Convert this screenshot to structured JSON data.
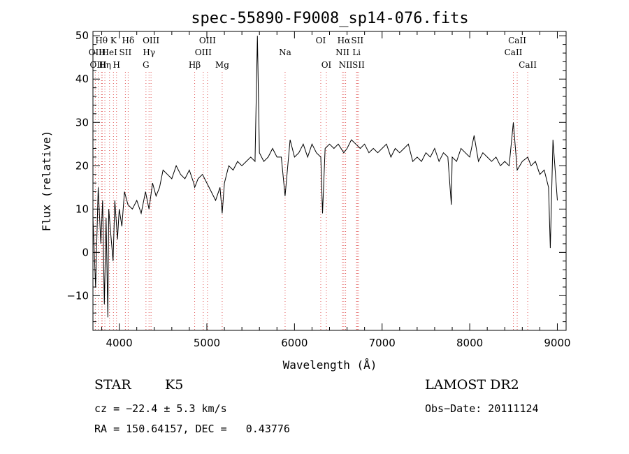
{
  "colors": {
    "spectrum": "#000000",
    "line_marker": "#e05050",
    "axis": "#000000"
  },
  "chart_data": {
    "type": "line",
    "title": "spec-55890-F9008_sp14-076.fits",
    "xlabel": "Wavelength (Å)",
    "ylabel": "Flux (relative)",
    "xlim": [
      3700,
      9100
    ],
    "ylim": [
      -18,
      51
    ],
    "xticks": [
      "4000",
      "5000",
      "6000",
      "7000",
      "8000",
      "9000"
    ],
    "yticks": [
      "−10",
      "0",
      "10",
      "20",
      "30",
      "40",
      "50"
    ],
    "grid": false,
    "legend": "none",
    "series": [
      {
        "x": [
          3700,
          3730,
          3760,
          3790,
          3810,
          3830,
          3850,
          3870,
          3880,
          3900,
          3930,
          3950,
          3980,
          4000,
          4030,
          4060,
          4100,
          4150,
          4200,
          4250,
          4300,
          4340,
          4380,
          4420,
          4460,
          4500,
          4550,
          4600,
          4650,
          4700,
          4750,
          4800,
          4850,
          4861,
          4900,
          4950,
          5000,
          5050,
          5100,
          5150,
          5175,
          5200,
          5250,
          5300,
          5350,
          5400,
          5450,
          5500,
          5550,
          5577,
          5600,
          5650,
          5700,
          5750,
          5800,
          5850,
          5893,
          5950,
          6000,
          6050,
          6100,
          6150,
          6200,
          6250,
          6300,
          6320,
          6350,
          6400,
          6450,
          6500,
          6563,
          6600,
          6650,
          6700,
          6750,
          6800,
          6850,
          6900,
          6950,
          7000,
          7050,
          7100,
          7150,
          7200,
          7250,
          7300,
          7350,
          7400,
          7450,
          7500,
          7550,
          7600,
          7650,
          7700,
          7750,
          7790,
          7800,
          7850,
          7900,
          7950,
          8000,
          8050,
          8100,
          8150,
          8200,
          8250,
          8300,
          8350,
          8400,
          8450,
          8498,
          8542,
          8600,
          8662,
          8700,
          8750,
          8800,
          8850,
          8900,
          8920,
          8950,
          9000
        ],
        "y": [
          8,
          -8,
          15,
          2,
          12,
          -12,
          8,
          -15,
          10,
          5,
          -2,
          12,
          3,
          10,
          6,
          14,
          11,
          10,
          12,
          9,
          14,
          10,
          16,
          13,
          15,
          19,
          18,
          17,
          20,
          18,
          17,
          19,
          16,
          15,
          17,
          18,
          16,
          14,
          12,
          15,
          9,
          16,
          20,
          19,
          21,
          20,
          21,
          22,
          21,
          50,
          23,
          21,
          22,
          24,
          22,
          22,
          13,
          26,
          22,
          23,
          25,
          22,
          25,
          23,
          22,
          9,
          24,
          25,
          24,
          25,
          23,
          24,
          26,
          25,
          24,
          25,
          23,
          24,
          23,
          24,
          25,
          22,
          24,
          23,
          24,
          25,
          21,
          22,
          21,
          23,
          22,
          24,
          21,
          23,
          22,
          11,
          22,
          21,
          24,
          23,
          22,
          27,
          21,
          23,
          22,
          21,
          22,
          20,
          21,
          20,
          30,
          19,
          21,
          22,
          20,
          21,
          18,
          19,
          15,
          1,
          26,
          12
        ]
      }
    ],
    "line_markers": [
      {
        "label": "Hθ",
        "x": 3798,
        "row": 0
      },
      {
        "label": "OII",
        "x": 3727,
        "row": 1
      },
      {
        "label": "OIII",
        "x": 3760,
        "row": 2
      },
      {
        "label": "H",
        "x": 3806,
        "row": 1
      },
      {
        "label": "Hη",
        "x": 3836,
        "row": 2
      },
      {
        "label": "K",
        "x": 3934,
        "row": 0
      },
      {
        "label": "HeI",
        "x": 3889,
        "row": 1
      },
      {
        "label": "H",
        "x": 3969,
        "row": 2
      },
      {
        "label": "SII",
        "x": 4070,
        "row": 1
      },
      {
        "label": "Hδ",
        "x": 4102,
        "row": 0
      },
      {
        "label": "OIII",
        "x": 4363,
        "row": 0
      },
      {
        "label": "Hγ",
        "x": 4340,
        "row": 1
      },
      {
        "label": "G",
        "x": 4305,
        "row": 2
      },
      {
        "label": "Hβ",
        "x": 4861,
        "row": 2
      },
      {
        "label": "OIII",
        "x": 5007,
        "row": 0
      },
      {
        "label": "OIII",
        "x": 4959,
        "row": 1
      },
      {
        "label": "Mg",
        "x": 5175,
        "row": 2
      },
      {
        "label": "Na",
        "x": 5893,
        "row": 1
      },
      {
        "label": "OI",
        "x": 6300,
        "row": 0
      },
      {
        "label": "OI",
        "x": 6364,
        "row": 2
      },
      {
        "label": "Hα",
        "x": 6563,
        "row": 0
      },
      {
        "label": "NII",
        "x": 6548,
        "row": 1
      },
      {
        "label": "NII",
        "x": 6584,
        "row": 2
      },
      {
        "label": "SII",
        "x": 6717,
        "row": 0
      },
      {
        "label": "Li",
        "x": 6708,
        "row": 1
      },
      {
        "label": "SII",
        "x": 6731,
        "row": 2
      },
      {
        "label": "CaII",
        "x": 8542,
        "row": 0
      },
      {
        "label": "CaII",
        "x": 8498,
        "row": 1
      },
      {
        "label": "CaII",
        "x": 8662,
        "row": 2
      }
    ]
  },
  "info": {
    "object_class": "STAR",
    "subclass": "K5",
    "survey": "LAMOST DR2",
    "cz": "cz = −22.4 ± 5.3 km/s",
    "obs_date": "Obs−Date: 20111124",
    "radec": "RA = 150.64157, DEC =   0.43776"
  }
}
